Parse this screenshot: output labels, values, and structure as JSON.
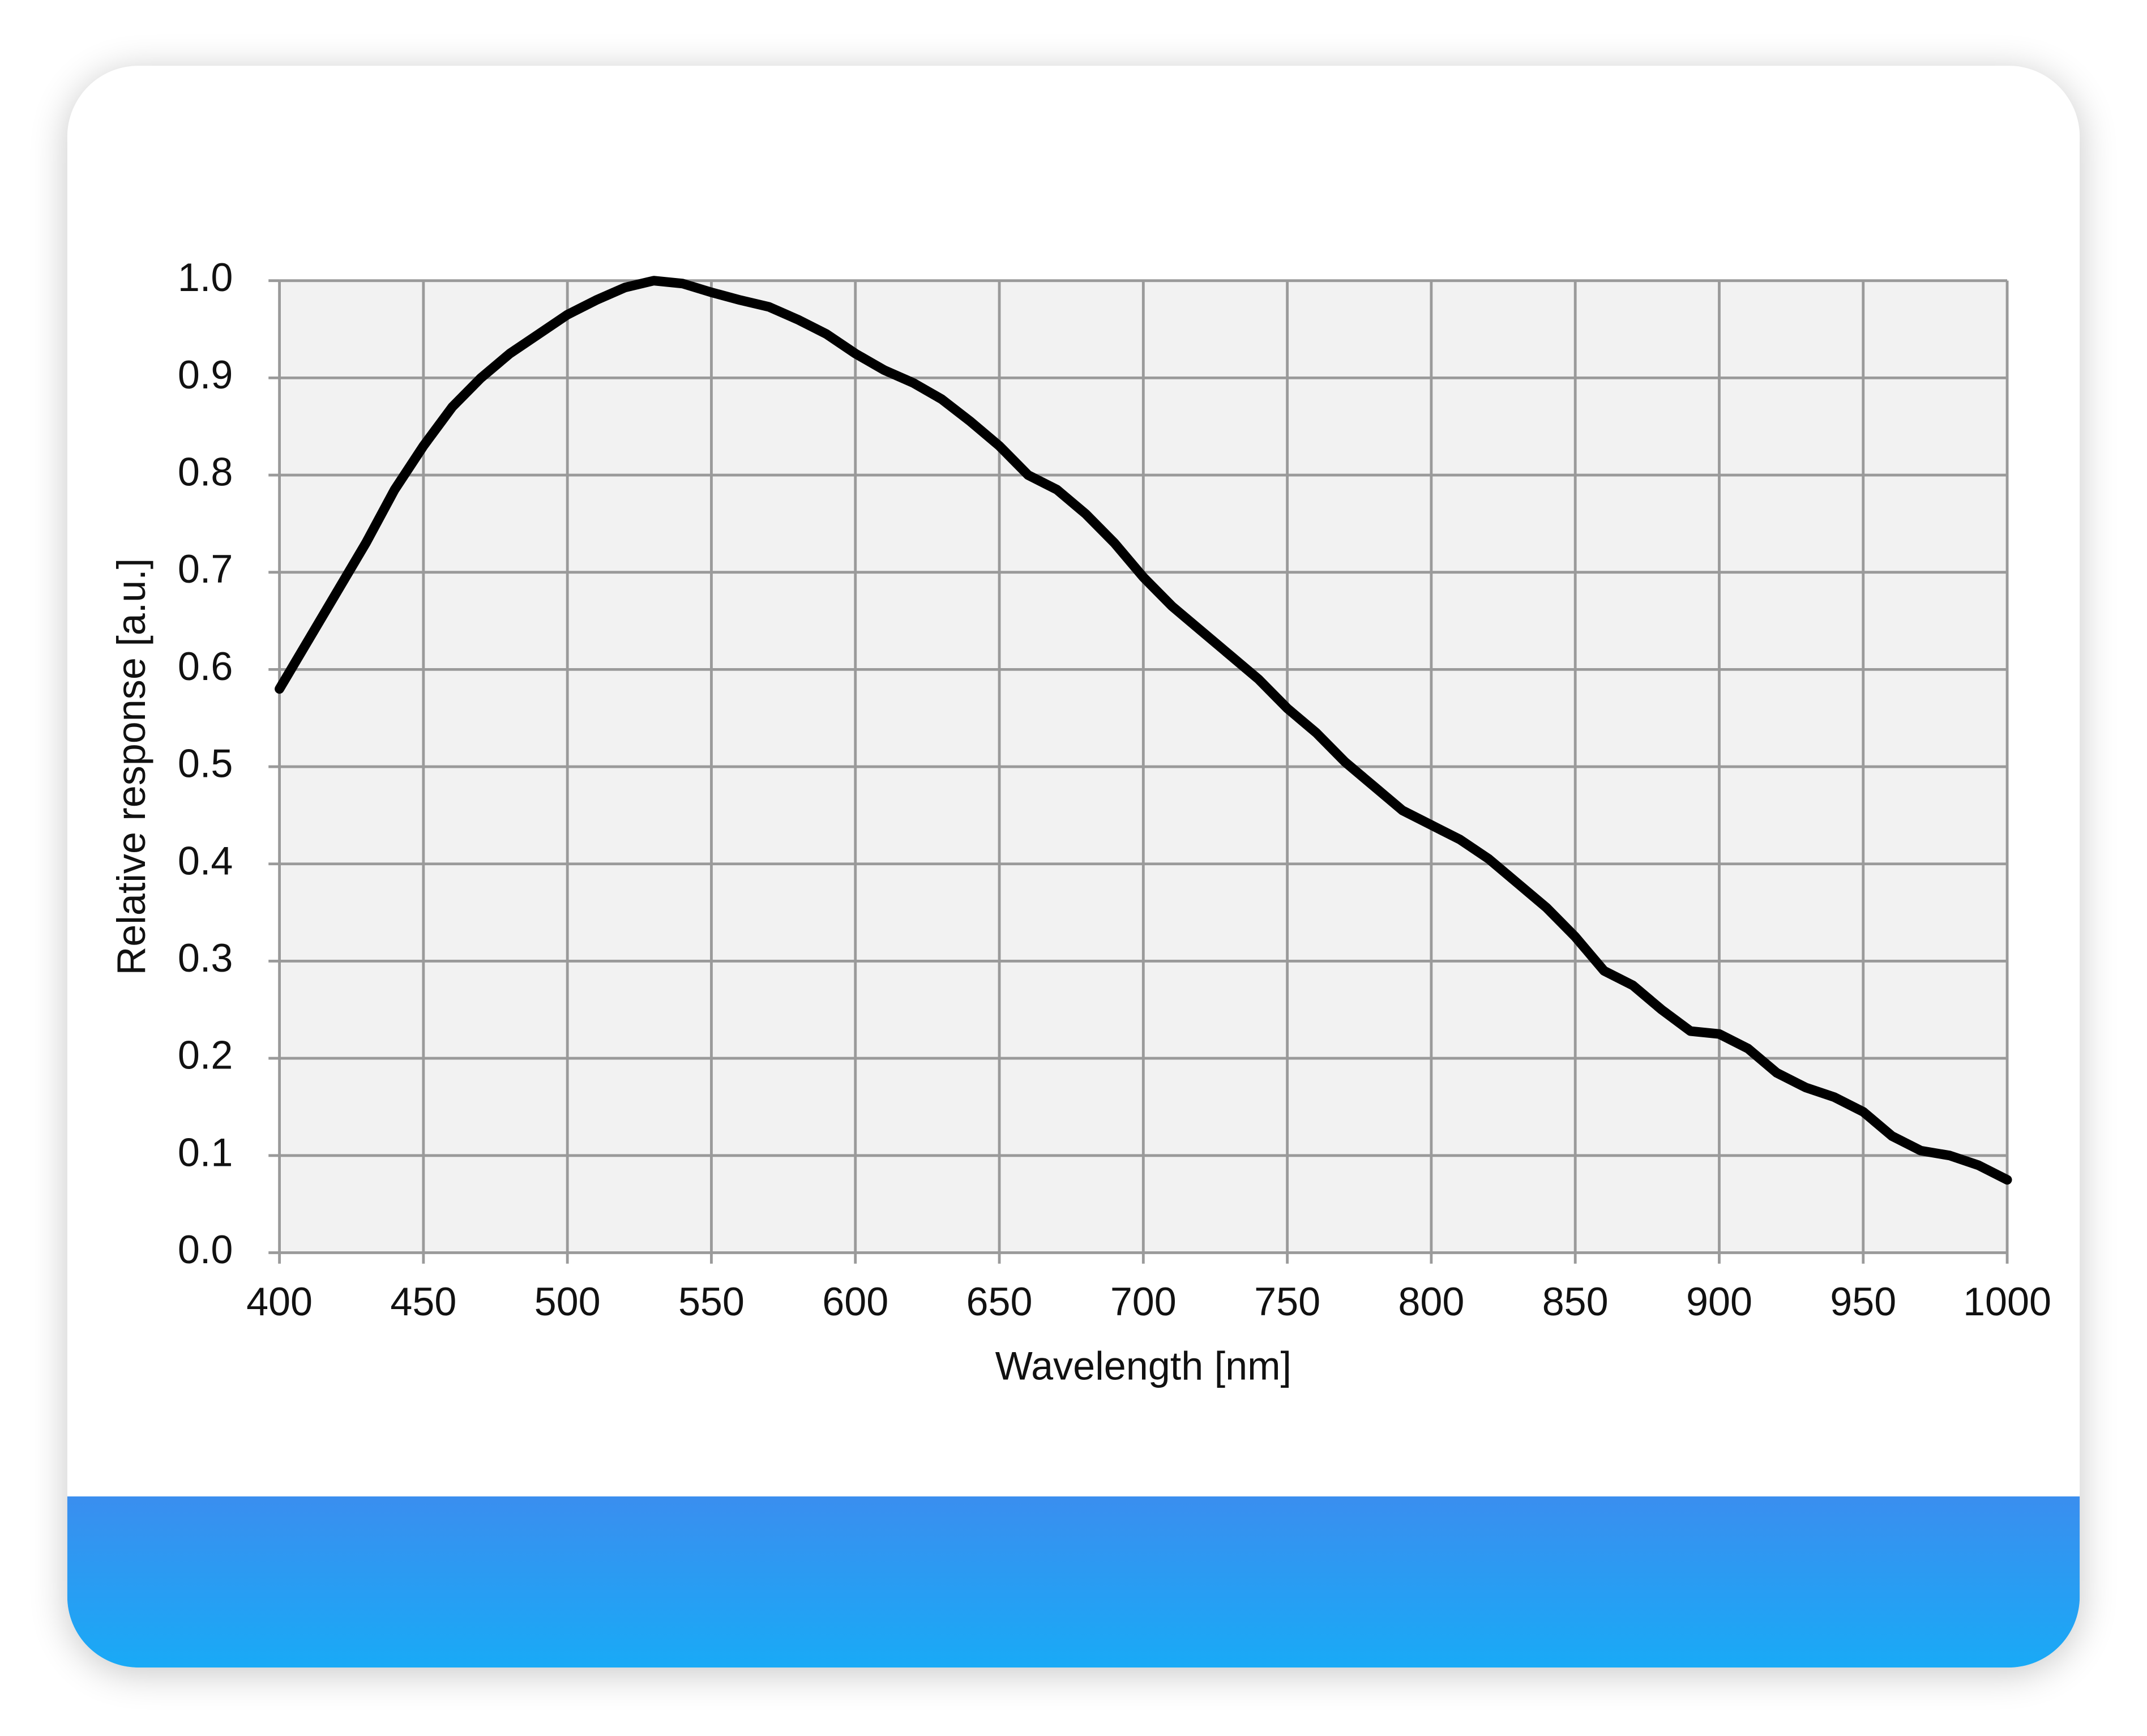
{
  "chart_data": {
    "type": "line",
    "x_label": "Wavelength  [nm]",
    "y_label": "Relative  response [a.u.]",
    "x": [
      400,
      410,
      420,
      430,
      440,
      450,
      460,
      470,
      480,
      490,
      500,
      510,
      520,
      530,
      540,
      550,
      560,
      570,
      580,
      590,
      600,
      610,
      620,
      630,
      640,
      650,
      660,
      670,
      680,
      690,
      700,
      710,
      720,
      730,
      740,
      750,
      760,
      770,
      780,
      790,
      800,
      810,
      820,
      830,
      840,
      850,
      860,
      870,
      880,
      890,
      900,
      910,
      920,
      930,
      940,
      950,
      960,
      970,
      980,
      990,
      1000
    ],
    "values": [
      0.58,
      0.63,
      0.68,
      0.73,
      0.785,
      0.83,
      0.87,
      0.9,
      0.925,
      0.945,
      0.965,
      0.98,
      0.993,
      1.0,
      0.997,
      0.988,
      0.98,
      0.973,
      0.96,
      0.945,
      0.925,
      0.908,
      0.895,
      0.878,
      0.855,
      0.83,
      0.8,
      0.785,
      0.76,
      0.73,
      0.695,
      0.665,
      0.64,
      0.615,
      0.59,
      0.56,
      0.535,
      0.505,
      0.48,
      0.455,
      0.44,
      0.425,
      0.405,
      0.38,
      0.355,
      0.325,
      0.29,
      0.275,
      0.25,
      0.228,
      0.225,
      0.21,
      0.185,
      0.17,
      0.16,
      0.145,
      0.12,
      0.105,
      0.1,
      0.09,
      0.075
    ],
    "color": "#000000",
    "xlim": [
      400,
      1000
    ],
    "ylim": [
      0,
      1
    ],
    "xticks": [
      400,
      450,
      500,
      550,
      600,
      650,
      700,
      750,
      800,
      850,
      900,
      950,
      1000
    ],
    "yticks": [
      {
        "value": 0,
        "label": "0.0"
      },
      0.1,
      0.2,
      0.3,
      0.4,
      0.5,
      0.6,
      0.7,
      0.8,
      0.9,
      {
        "value": 1,
        "label": "1.0"
      }
    ],
    "grid": true
  }
}
